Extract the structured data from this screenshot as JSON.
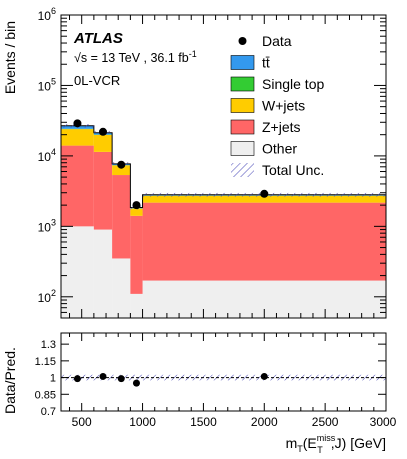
{
  "chart_data": {
    "type": "bar",
    "subtype": "stacked-histogram-with-ratio",
    "experiment": "ATLAS",
    "energy_label": "√s = 13 TeV , 36.1 fb",
    "energy_superscript": "-1",
    "region": "0L-VCR",
    "xlabel": {
      "main": "m",
      "sub1": "T",
      "paren_open": "(E",
      "sup": "miss",
      "sub2": "T",
      "tail": ",J) [GeV]"
    },
    "ylabel_main": "Events / bin",
    "ylabel_ratio": "Data/Pred.",
    "xlim": [
      330,
      3000
    ],
    "ylim_main": [
      50,
      1000000
    ],
    "ylim_ratio": [
      0.7,
      1.4
    ],
    "log_y": true,
    "x_ticks": [
      "500",
      "1000",
      "1500",
      "2000",
      "2500",
      "3000"
    ],
    "x_tick_values": [
      500,
      1000,
      1500,
      2000,
      2500,
      3000
    ],
    "y_ticks_main": [
      {
        "value": 100,
        "base": "10",
        "exp": "2"
      },
      {
        "value": 1000,
        "base": "10",
        "exp": "3"
      },
      {
        "value": 10000,
        "base": "10",
        "exp": "4"
      },
      {
        "value": 100000,
        "base": "10",
        "exp": "5"
      },
      {
        "value": 1000000,
        "base": "10",
        "exp": "6"
      }
    ],
    "y_ticks_ratio": [
      "0.7",
      "0.85",
      "1",
      "1.15",
      "1.3"
    ],
    "y_tick_values_ratio": [
      0.7,
      0.85,
      1.0,
      1.15,
      1.3
    ],
    "bins": [
      {
        "lo": 330,
        "hi": 600
      },
      {
        "lo": 600,
        "hi": 750
      },
      {
        "lo": 750,
        "hi": 900
      },
      {
        "lo": 900,
        "hi": 1000
      },
      {
        "lo": 1000,
        "hi": 3000
      }
    ],
    "series": [
      {
        "name": "Other",
        "color": "#efefef",
        "values": [
          1000,
          900,
          350,
          110,
          170
        ]
      },
      {
        "name": "Z+jets",
        "color": "#ff6666",
        "values": [
          13000,
          10500,
          5000,
          1300,
          2000
        ]
      },
      {
        "name": "W+jets",
        "color": "#ffcc00",
        "values": [
          10000,
          8500,
          2000,
          380,
          550
        ]
      },
      {
        "name": "Single top",
        "color": "#33cc33",
        "values": [
          250,
          150,
          40,
          10,
          12
        ]
      },
      {
        "name": "tt̄",
        "color": "#3399ee",
        "values": [
          2500,
          1300,
          300,
          50,
          80
        ]
      }
    ],
    "data": {
      "name": "Data",
      "x": [
        465,
        675,
        825,
        950,
        2000
      ],
      "y": [
        29000,
        22000,
        7500,
        2000,
        2900
      ],
      "ratio": [
        0.99,
        1.01,
        0.99,
        0.95,
        1.01
      ]
    },
    "uncertainty_label": "Total Unc.",
    "legend_position": "top-right",
    "colors": {
      "uncertainty_hatch": "#4a4ab8",
      "frame": "#000000"
    }
  }
}
